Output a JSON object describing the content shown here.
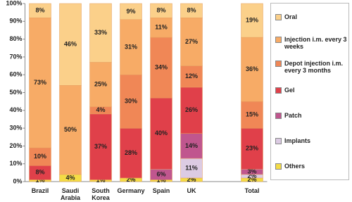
{
  "chart_data": {
    "type": "stacked-bar",
    "categories": [
      "Brazil",
      "Saudi Arabia",
      "South Korea",
      "Germany",
      "Spain",
      "UK",
      null,
      "Total"
    ],
    "ylim": [
      0,
      100
    ],
    "yticks": [
      {
        "value": 0,
        "label": "0%"
      },
      {
        "value": 10,
        "label": "10%"
      },
      {
        "value": 20,
        "label": "20%"
      },
      {
        "value": 30,
        "label": "30%"
      },
      {
        "value": 40,
        "label": "40%"
      },
      {
        "value": 50,
        "label": "50%"
      },
      {
        "value": 60,
        "label": "60%"
      },
      {
        "value": 70,
        "label": "70%"
      },
      {
        "value": 80,
        "label": "80%"
      },
      {
        "value": 90,
        "label": "90%"
      },
      {
        "value": 100,
        "label": "100%"
      }
    ],
    "series": [
      {
        "name": "Others",
        "color": "#f4dc45",
        "values": [
          1,
          4,
          1,
          2,
          1,
          2,
          null,
          2
        ],
        "value_labels": [
          "1%",
          "4%",
          "1%",
          "2%",
          "1%",
          "2%",
          null,
          "2%"
        ]
      },
      {
        "name": "Implants",
        "color": "#dccbe3",
        "values": [
          null,
          null,
          null,
          null,
          null,
          11,
          null,
          2
        ],
        "value_labels": [
          null,
          null,
          null,
          null,
          null,
          "11%",
          null,
          "2%"
        ]
      },
      {
        "name": "Patch",
        "color": "#c0568e",
        "values": [
          null,
          null,
          null,
          null,
          6,
          14,
          null,
          3
        ],
        "value_labels": [
          null,
          null,
          null,
          null,
          "6%",
          "14%",
          null,
          "3%"
        ]
      },
      {
        "name": "Gel",
        "color": "#e0404a",
        "values": [
          8,
          null,
          37,
          28,
          40,
          26,
          null,
          23
        ],
        "value_labels": [
          "8%",
          null,
          "37%",
          "28%",
          "40%",
          "26%",
          null,
          "23%"
        ]
      },
      {
        "name": "Depot injection i.m. every 3 months",
        "color": "#f08756",
        "values": [
          10,
          null,
          4,
          30,
          34,
          12,
          null,
          15
        ],
        "value_labels": [
          "10%",
          null,
          "4%",
          "30%",
          "34%",
          "12%",
          null,
          "15%"
        ]
      },
      {
        "name": "Injection i.m. every 3 weeks",
        "color": "#f7ab66",
        "values": [
          73,
          50,
          25,
          31,
          11,
          27,
          null,
          36
        ],
        "value_labels": [
          "73%",
          "50%",
          "25%",
          "31%",
          "11%",
          "27%",
          null,
          "36%"
        ]
      },
      {
        "name": "Oral",
        "color": "#fbd08a",
        "values": [
          8,
          46,
          33,
          9,
          8,
          8,
          null,
          19
        ],
        "value_labels": [
          "8%",
          "46%",
          "33%",
          "9%",
          "8%",
          "8%",
          null,
          "19%"
        ]
      }
    ]
  }
}
